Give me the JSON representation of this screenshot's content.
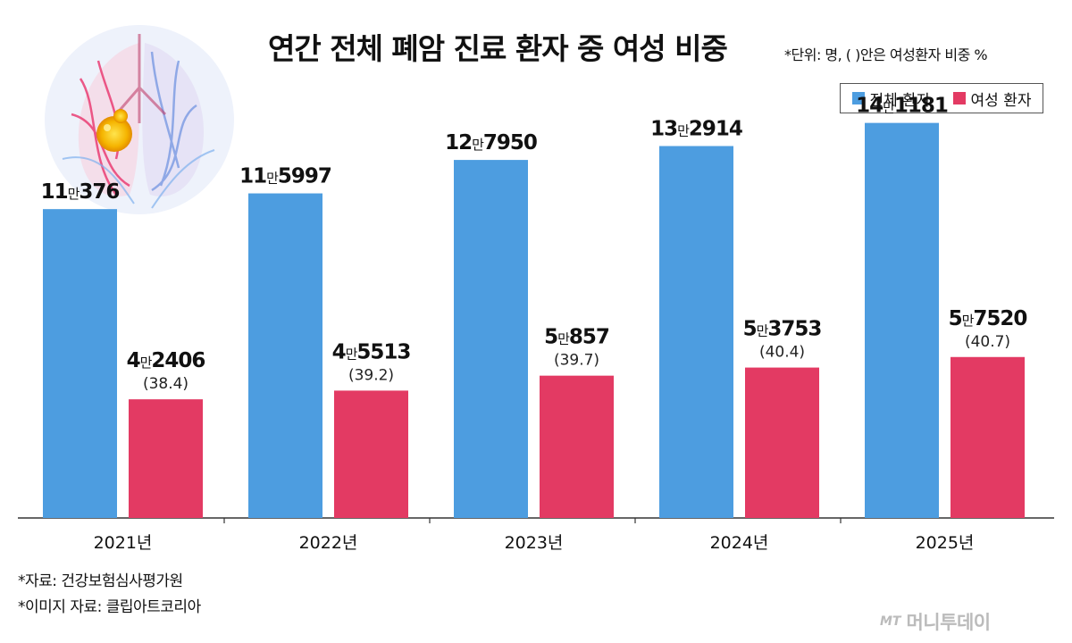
{
  "header": {
    "title": "연간 전체 폐암 진료 환자 중 여성 비중",
    "unit_note": "*단위: 명, (  )안은 여성환자 비중 %"
  },
  "legend": {
    "items": [
      {
        "label": "전체 환자",
        "color": "#4d9de0"
      },
      {
        "label": "여성 환자",
        "color": "#e33a63"
      }
    ]
  },
  "chart_data": {
    "type": "bar",
    "title": "연간 전체 폐암 진료 환자 중 여성 비중",
    "categories": [
      "2021년",
      "2022년",
      "2023년",
      "2024년",
      "2025년"
    ],
    "series": [
      {
        "name": "전체 환자",
        "color": "#4d9de0",
        "values": [
          110376,
          115997,
          127950,
          132914,
          141181
        ],
        "labels": [
          {
            "man": "11",
            "rest": "376"
          },
          {
            "man": "11",
            "rest": "5997"
          },
          {
            "man": "12",
            "rest": "7950"
          },
          {
            "man": "13",
            "rest": "2914"
          },
          {
            "man": "14",
            "rest": "1181"
          }
        ]
      },
      {
        "name": "여성 환자",
        "color": "#e33a63",
        "values": [
          42406,
          45513,
          50857,
          53753,
          57520
        ],
        "labels": [
          {
            "man": "4",
            "rest": "2406"
          },
          {
            "man": "4",
            "rest": "5513"
          },
          {
            "man": "5",
            "rest": "857"
          },
          {
            "man": "5",
            "rest": "3753"
          },
          {
            "man": "5",
            "rest": "7520"
          }
        ],
        "share_labels": [
          "(38.4)",
          "(39.2)",
          "(39.7)",
          "(40.4)",
          "(40.7)"
        ]
      }
    ],
    "man_unit": "만",
    "ylim": [
      0,
      150000
    ],
    "grid": false,
    "legend_position": "top-right"
  },
  "footer": {
    "sources": [
      "*자료: 건강보험심사평가원",
      "*이미지 자료: 클립아트코리아"
    ],
    "logo_mt": "MT",
    "logo_name": "머니투데이"
  }
}
